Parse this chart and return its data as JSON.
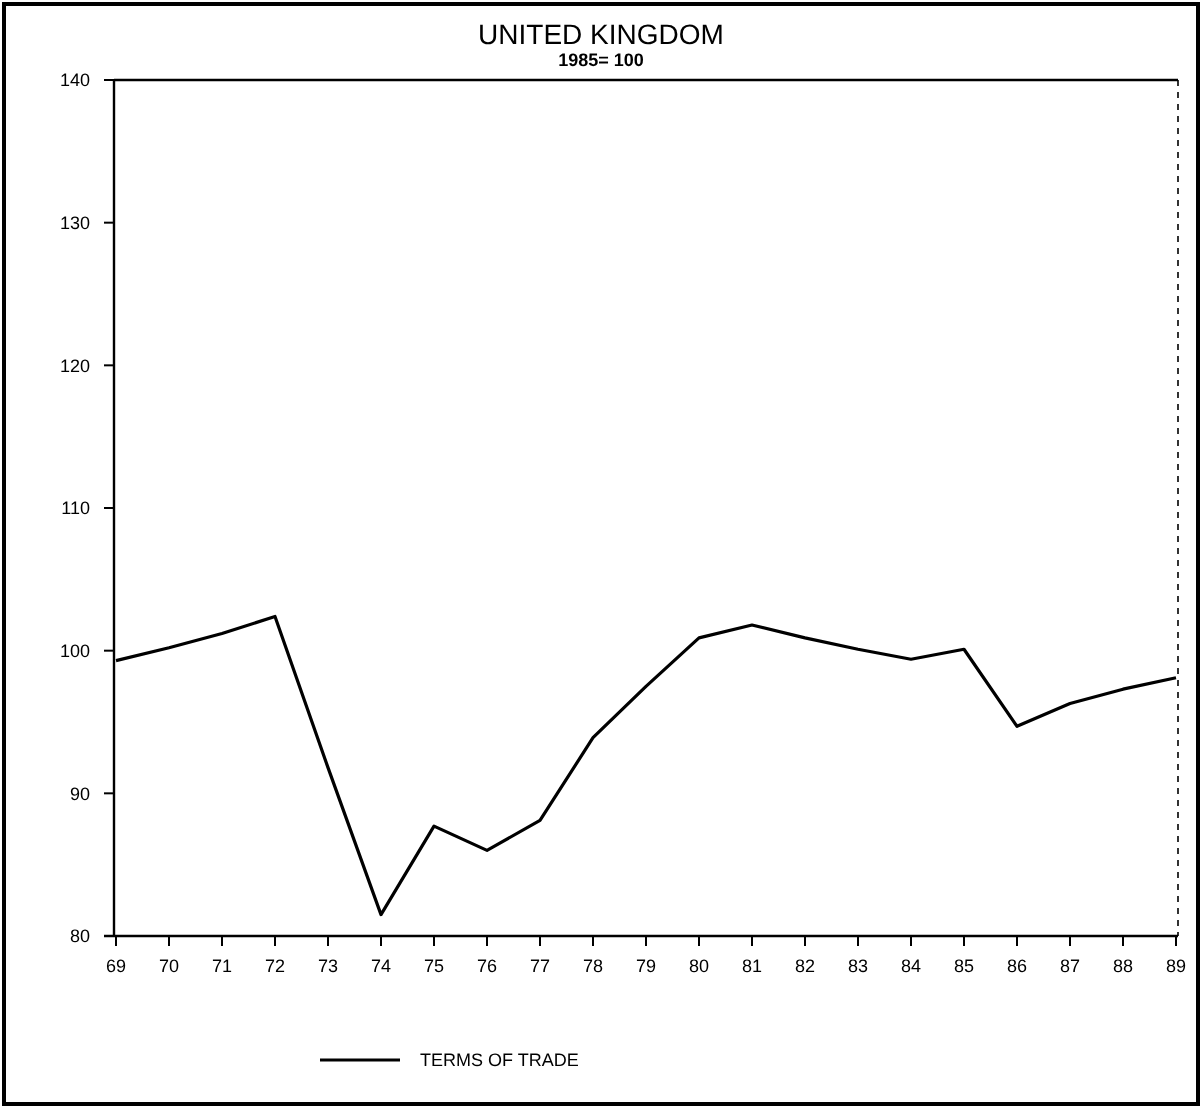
{
  "chart_data": {
    "type": "line",
    "title": "UNITED KINGDOM",
    "subtitle": "1985= 100",
    "categories": [
      "69",
      "70",
      "71",
      "72",
      "73",
      "74",
      "75",
      "76",
      "77",
      "78",
      "79",
      "80",
      "81",
      "82",
      "83",
      "84",
      "85",
      "86",
      "87",
      "88",
      "89"
    ],
    "series": [
      {
        "name": "TERMS OF TRADE",
        "color": "#000000",
        "values": [
          99.3,
          100.2,
          101.2,
          102.4,
          91.8,
          81.5,
          87.7,
          86.0,
          88.1,
          93.9,
          97.5,
          100.9,
          101.8,
          100.9,
          100.1,
          99.4,
          100.1,
          94.7,
          96.3,
          97.3,
          98.1
        ]
      }
    ],
    "ylim": [
      80,
      140
    ],
    "yticks": [
      80,
      90,
      100,
      110,
      120,
      130,
      140
    ],
    "grid": false,
    "legend": "bottom",
    "marker": "none",
    "line_style": "solid"
  }
}
